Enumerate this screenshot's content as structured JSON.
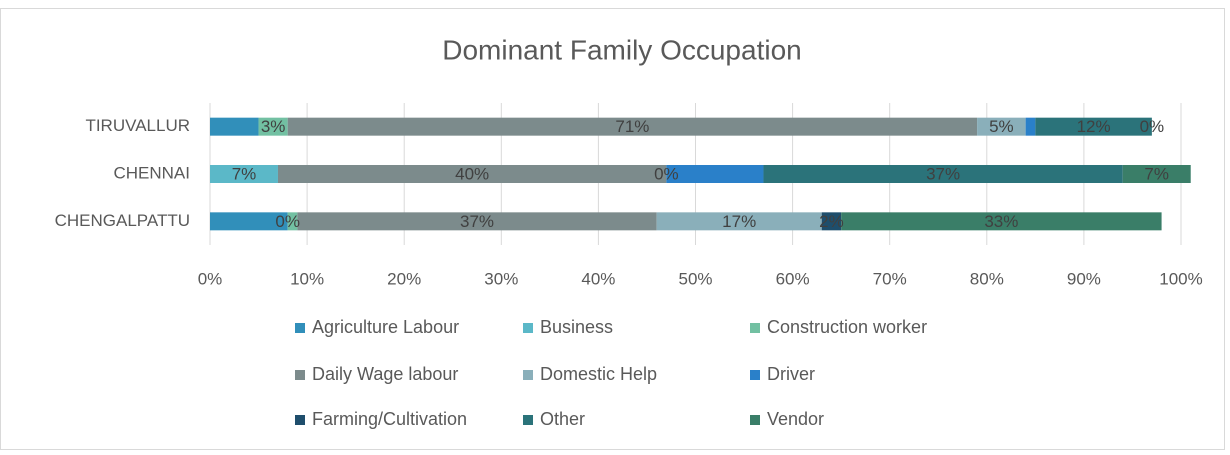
{
  "chart_data": {
    "type": "bar",
    "orientation": "horizontal",
    "stacked": true,
    "title": "Dominant Family Occupation",
    "categories": [
      "TIRUVALLUR",
      "CHENNAI",
      "CHENGALPATTU"
    ],
    "xlim": [
      0,
      100
    ],
    "xticks": [
      {
        "value": 0,
        "label": "0%"
      },
      {
        "value": 10,
        "label": "10%"
      },
      {
        "value": 20,
        "label": "20%"
      },
      {
        "value": 30,
        "label": "30%"
      },
      {
        "value": 40,
        "label": "40%"
      },
      {
        "value": 50,
        "label": "50%"
      },
      {
        "value": 60,
        "label": "60%"
      },
      {
        "value": 70,
        "label": "70%"
      },
      {
        "value": 80,
        "label": "80%"
      },
      {
        "value": 90,
        "label": "90%"
      },
      {
        "value": 100,
        "label": "100%"
      }
    ],
    "grid": true,
    "legend": "bottom",
    "series": [
      {
        "name": "Agriculture Labour",
        "color": "#318fba",
        "values": [
          5,
          0,
          8
        ],
        "value_labels": [
          null,
          null,
          null
        ]
      },
      {
        "name": "Business",
        "color": "#5bb8c8",
        "values": [
          0,
          7,
          0
        ],
        "value_labels": [
          null,
          "7%",
          "0%"
        ]
      },
      {
        "name": "Construction worker",
        "color": "#72c0a2",
        "values": [
          3,
          0,
          1
        ],
        "value_labels": [
          "3%",
          null,
          null
        ]
      },
      {
        "name": "Daily Wage labour",
        "color": "#7c8b8c",
        "values": [
          71,
          40,
          37
        ],
        "value_labels": [
          "71%",
          "40%",
          "37%"
        ]
      },
      {
        "name": "Domestic Help",
        "color": "#8aafba",
        "values": [
          5,
          0,
          17
        ],
        "value_labels": [
          "5%",
          "0%",
          "17%"
        ]
      },
      {
        "name": "Driver",
        "color": "#2a80c9",
        "values": [
          1,
          10,
          0
        ],
        "value_labels": [
          null,
          null,
          null
        ]
      },
      {
        "name": "Farming/Cultivation",
        "color": "#1e4e6c",
        "values": [
          0,
          0,
          2
        ],
        "value_labels": [
          null,
          null,
          "2%"
        ]
      },
      {
        "name": "Other",
        "color": "#2b737a",
        "values": [
          12,
          37,
          0
        ],
        "value_labels": [
          "12%",
          "37%",
          null
        ]
      },
      {
        "name": "Vendor",
        "color": "#3a7e68",
        "values": [
          0,
          7,
          33
        ],
        "value_labels": [
          "0%",
          "7%",
          "33%"
        ]
      }
    ]
  }
}
